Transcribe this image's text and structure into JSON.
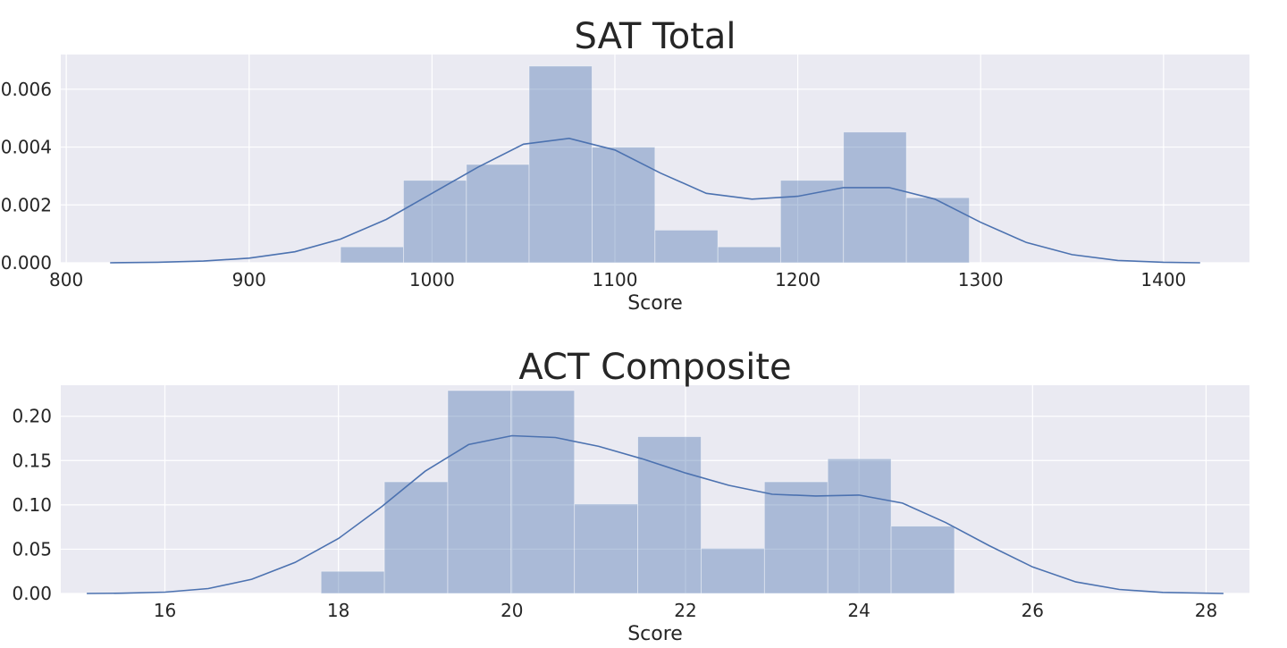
{
  "colors": {
    "panel_background": "#eaeaf2",
    "grid": "#ffffff",
    "bar_fill": "#4c72b0",
    "bar_opacity": 0.4,
    "kde_line": "#4c72b0",
    "text": "#262626"
  },
  "chart_data": [
    {
      "type": "bar",
      "title": "SAT Total",
      "xlabel": "Score",
      "ylabel": "",
      "grid": true,
      "xlim": [
        797,
        1447
      ],
      "ylim": [
        0,
        0.0072
      ],
      "xticks": [
        800,
        900,
        1000,
        1100,
        1200,
        1300,
        1400
      ],
      "yticks": [
        0.0,
        0.002,
        0.004,
        0.006
      ],
      "ytick_labels": [
        "0.000",
        "0.002",
        "0.004",
        "0.006"
      ],
      "histogram": {
        "bin_edges": [
          950,
          984.4,
          1018.8,
          1053.1,
          1087.5,
          1121.9,
          1156.3,
          1190.6,
          1225,
          1259.4,
          1293.8
        ],
        "values": [
          0.00055,
          0.00285,
          0.0034,
          0.0068,
          0.004,
          0.00113,
          0.00055,
          0.00285,
          0.00452,
          0.00225
        ]
      },
      "kde": {
        "x": [
          824,
          850,
          875,
          900,
          925,
          950,
          975,
          1000,
          1025,
          1050,
          1075,
          1100,
          1125,
          1150,
          1175,
          1200,
          1225,
          1250,
          1275,
          1300,
          1325,
          1350,
          1375,
          1400,
          1420
        ],
        "y": [
          0.0,
          2e-05,
          6e-05,
          0.00016,
          0.00038,
          0.00082,
          0.0015,
          0.0024,
          0.0033,
          0.0041,
          0.0043,
          0.0039,
          0.0031,
          0.0024,
          0.0022,
          0.0023,
          0.0026,
          0.0026,
          0.0022,
          0.0014,
          0.0007,
          0.00028,
          8e-05,
          2e-05,
          0.0
        ]
      }
    },
    {
      "type": "bar",
      "title": "ACT Composite",
      "xlabel": "Score",
      "ylabel": "",
      "grid": true,
      "xlim": [
        14.8,
        28.5
      ],
      "ylim": [
        0,
        0.235
      ],
      "xticks": [
        16,
        18,
        20,
        22,
        24,
        26,
        28
      ],
      "yticks": [
        0.0,
        0.05,
        0.1,
        0.15,
        0.2
      ],
      "ytick_labels": [
        "0.00",
        "0.05",
        "0.10",
        "0.15",
        "0.20"
      ],
      "histogram": {
        "bin_edges": [
          17.8,
          18.53,
          19.26,
          19.99,
          20.72,
          21.45,
          22.18,
          22.91,
          23.64,
          24.37,
          25.1
        ],
        "values": [
          0.025,
          0.126,
          0.229,
          0.229,
          0.101,
          0.177,
          0.051,
          0.126,
          0.152,
          0.076
        ]
      },
      "kde": {
        "x": [
          15.1,
          15.5,
          16,
          16.5,
          17,
          17.5,
          18,
          18.5,
          19,
          19.5,
          20,
          20.5,
          21,
          21.5,
          22,
          22.5,
          23,
          23.5,
          24,
          24.5,
          25,
          25.5,
          26,
          26.5,
          27,
          27.5,
          28.2
        ],
        "y": [
          0.0,
          0.0003,
          0.0015,
          0.0055,
          0.016,
          0.035,
          0.062,
          0.098,
          0.138,
          0.168,
          0.178,
          0.176,
          0.166,
          0.152,
          0.136,
          0.122,
          0.112,
          0.11,
          0.111,
          0.102,
          0.08,
          0.054,
          0.03,
          0.013,
          0.0045,
          0.0012,
          0.0
        ]
      }
    }
  ]
}
